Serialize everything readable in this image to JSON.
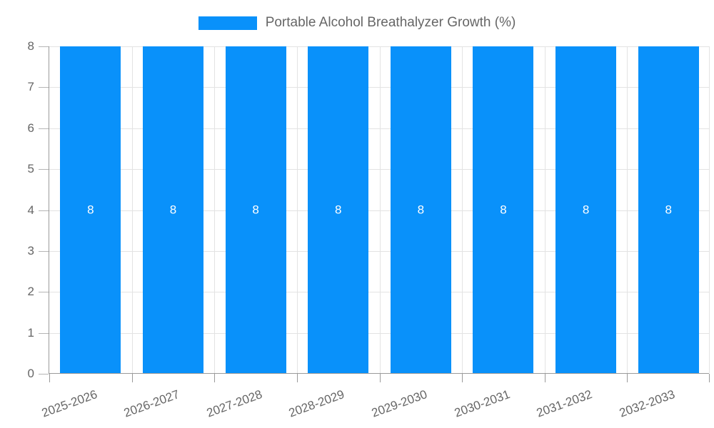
{
  "legend": {
    "position": "top"
  },
  "chart_data": {
    "type": "bar",
    "series_name": "Portable Alcohol Breathalyzer Growth (%)",
    "categories": [
      "2025-2026",
      "2026-2027",
      "2027-2028",
      "2028-2029",
      "2029-2030",
      "2030-2031",
      "2031-2032",
      "2032-2033"
    ],
    "values": [
      8,
      8,
      8,
      8,
      8,
      8,
      8,
      8
    ],
    "data_labels": [
      "8",
      "8",
      "8",
      "8",
      "8",
      "8",
      "8",
      "8"
    ],
    "title": "Portable Alcohol Breathalyzer Growth (%)",
    "xlabel": "",
    "ylabel": "",
    "ylim": [
      0,
      8
    ],
    "yticks": [
      0,
      1,
      2,
      3,
      4,
      5,
      6,
      7,
      8
    ],
    "grid": true,
    "legend_position": "top",
    "x_label_rotation_deg": -20
  },
  "colors": {
    "bar": "#0991FA",
    "grid": "#e3e3e3",
    "axis": "#9a9a9a",
    "text": "#666666",
    "data_label": "#ffffff",
    "background": "#ffffff"
  }
}
